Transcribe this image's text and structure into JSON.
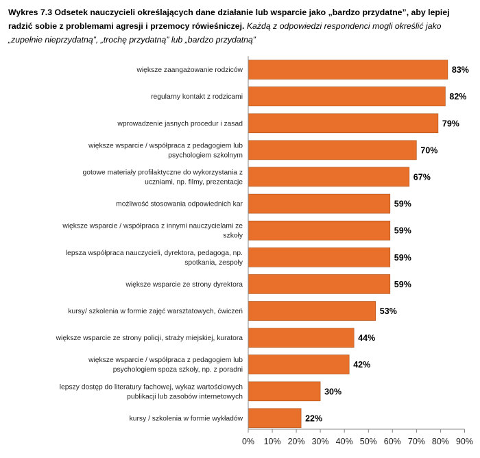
{
  "caption": {
    "title": "Wykres 7.3 Odsetek nauczycieli określających dane działanie lub wsparcie jako „bardzo przydatne”, aby lepiej radzić sobie z problemami agresji i przemocy rówieśniczej.",
    "note": "Każdą z odpowiedzi respondenci mogli określić jako „zupełnie nieprzydatną”, „trochę przydatną” lub „bardzo przydatną”"
  },
  "chart_data": {
    "type": "bar",
    "orientation": "horizontal",
    "categories": [
      [
        "większe zaangażowanie rodziców"
      ],
      [
        "regularny kontakt z rodzicami"
      ],
      [
        "wprowadzenie jasnych procedur i zasad"
      ],
      [
        "większe wsparcie / współpraca z pedagogiem lub",
        "psychologiem szkolnym"
      ],
      [
        "gotowe materiały profilaktyczne do wykorzystania z",
        "uczniami, np. filmy, prezentacje"
      ],
      [
        "możliwość  stosowania odpowiednich kar"
      ],
      [
        "większe wsparcie / współpraca z innymi nauczycielami ze",
        "szkoły"
      ],
      [
        "lepsza współpraca nauczycieli, dyrektora, pedagoga, np.",
        "spotkania, zespoły"
      ],
      [
        "większe wsparcie ze strony dyrektora"
      ],
      [
        "kursy/ szkolenia w formie zajęć warsztatowych, ćwiczeń"
      ],
      [
        "większe wsparcie ze strony policji, straży miejskiej, kuratora"
      ],
      [
        "większe wsparcie / współpraca z pedagogiem lub",
        "psychologiem spoza szkoły, np. z poradni"
      ],
      [
        "lepszy dostęp do literatury fachowej, wykaz wartościowych",
        "publikacji lub zasobów internetowych"
      ],
      [
        "kursy / szkolenia w formie wykładów"
      ]
    ],
    "values": [
      83,
      82,
      79,
      70,
      67,
      59,
      59,
      59,
      59,
      53,
      44,
      42,
      30,
      22
    ],
    "value_labels": [
      "83%",
      "82%",
      "79%",
      "70%",
      "67%",
      "59%",
      "59%",
      "59%",
      "59%",
      "53%",
      "44%",
      "42%",
      "30%",
      "22%"
    ],
    "x_ticks": [
      "0%",
      "10%",
      "20%",
      "30%",
      "40%",
      "50%",
      "60%",
      "70%",
      "80%",
      "90%"
    ],
    "xlim": [
      0,
      90
    ],
    "bar_color": "#E8702A",
    "bar_stroke": "#A84E16",
    "grid": false,
    "legend": "none"
  }
}
